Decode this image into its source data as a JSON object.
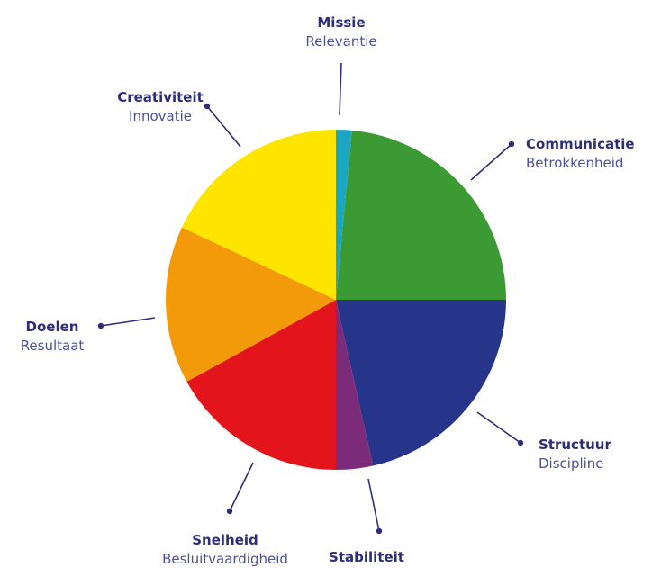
{
  "chart_data": {
    "type": "pie",
    "title": "",
    "slices": [
      {
        "title": "Missie",
        "subtitle": "Relevantie",
        "value": 1.5,
        "color": "#1ba7c4"
      },
      {
        "title": "Communicatie",
        "subtitle": "Betrokkenheid",
        "value": 23.5,
        "color": "#3c9a35"
      },
      {
        "title": "Structuur",
        "subtitle": "Discipline",
        "value": 21.5,
        "color": "#263489"
      },
      {
        "title": "Stabiliteit",
        "subtitle": "",
        "value": 3.5,
        "color": "#7b2b7a"
      },
      {
        "title": "Snelheid",
        "subtitle": "Besluitvaardigheid",
        "value": 17.0,
        "color": "#e3141b"
      },
      {
        "title": "Doelen",
        "subtitle": "Resultaat",
        "value": 15.0,
        "color": "#f39a0a"
      },
      {
        "title": "Creativiteit",
        "subtitle": "Innovatie",
        "value": 18.0,
        "color": "#fde500"
      }
    ]
  }
}
